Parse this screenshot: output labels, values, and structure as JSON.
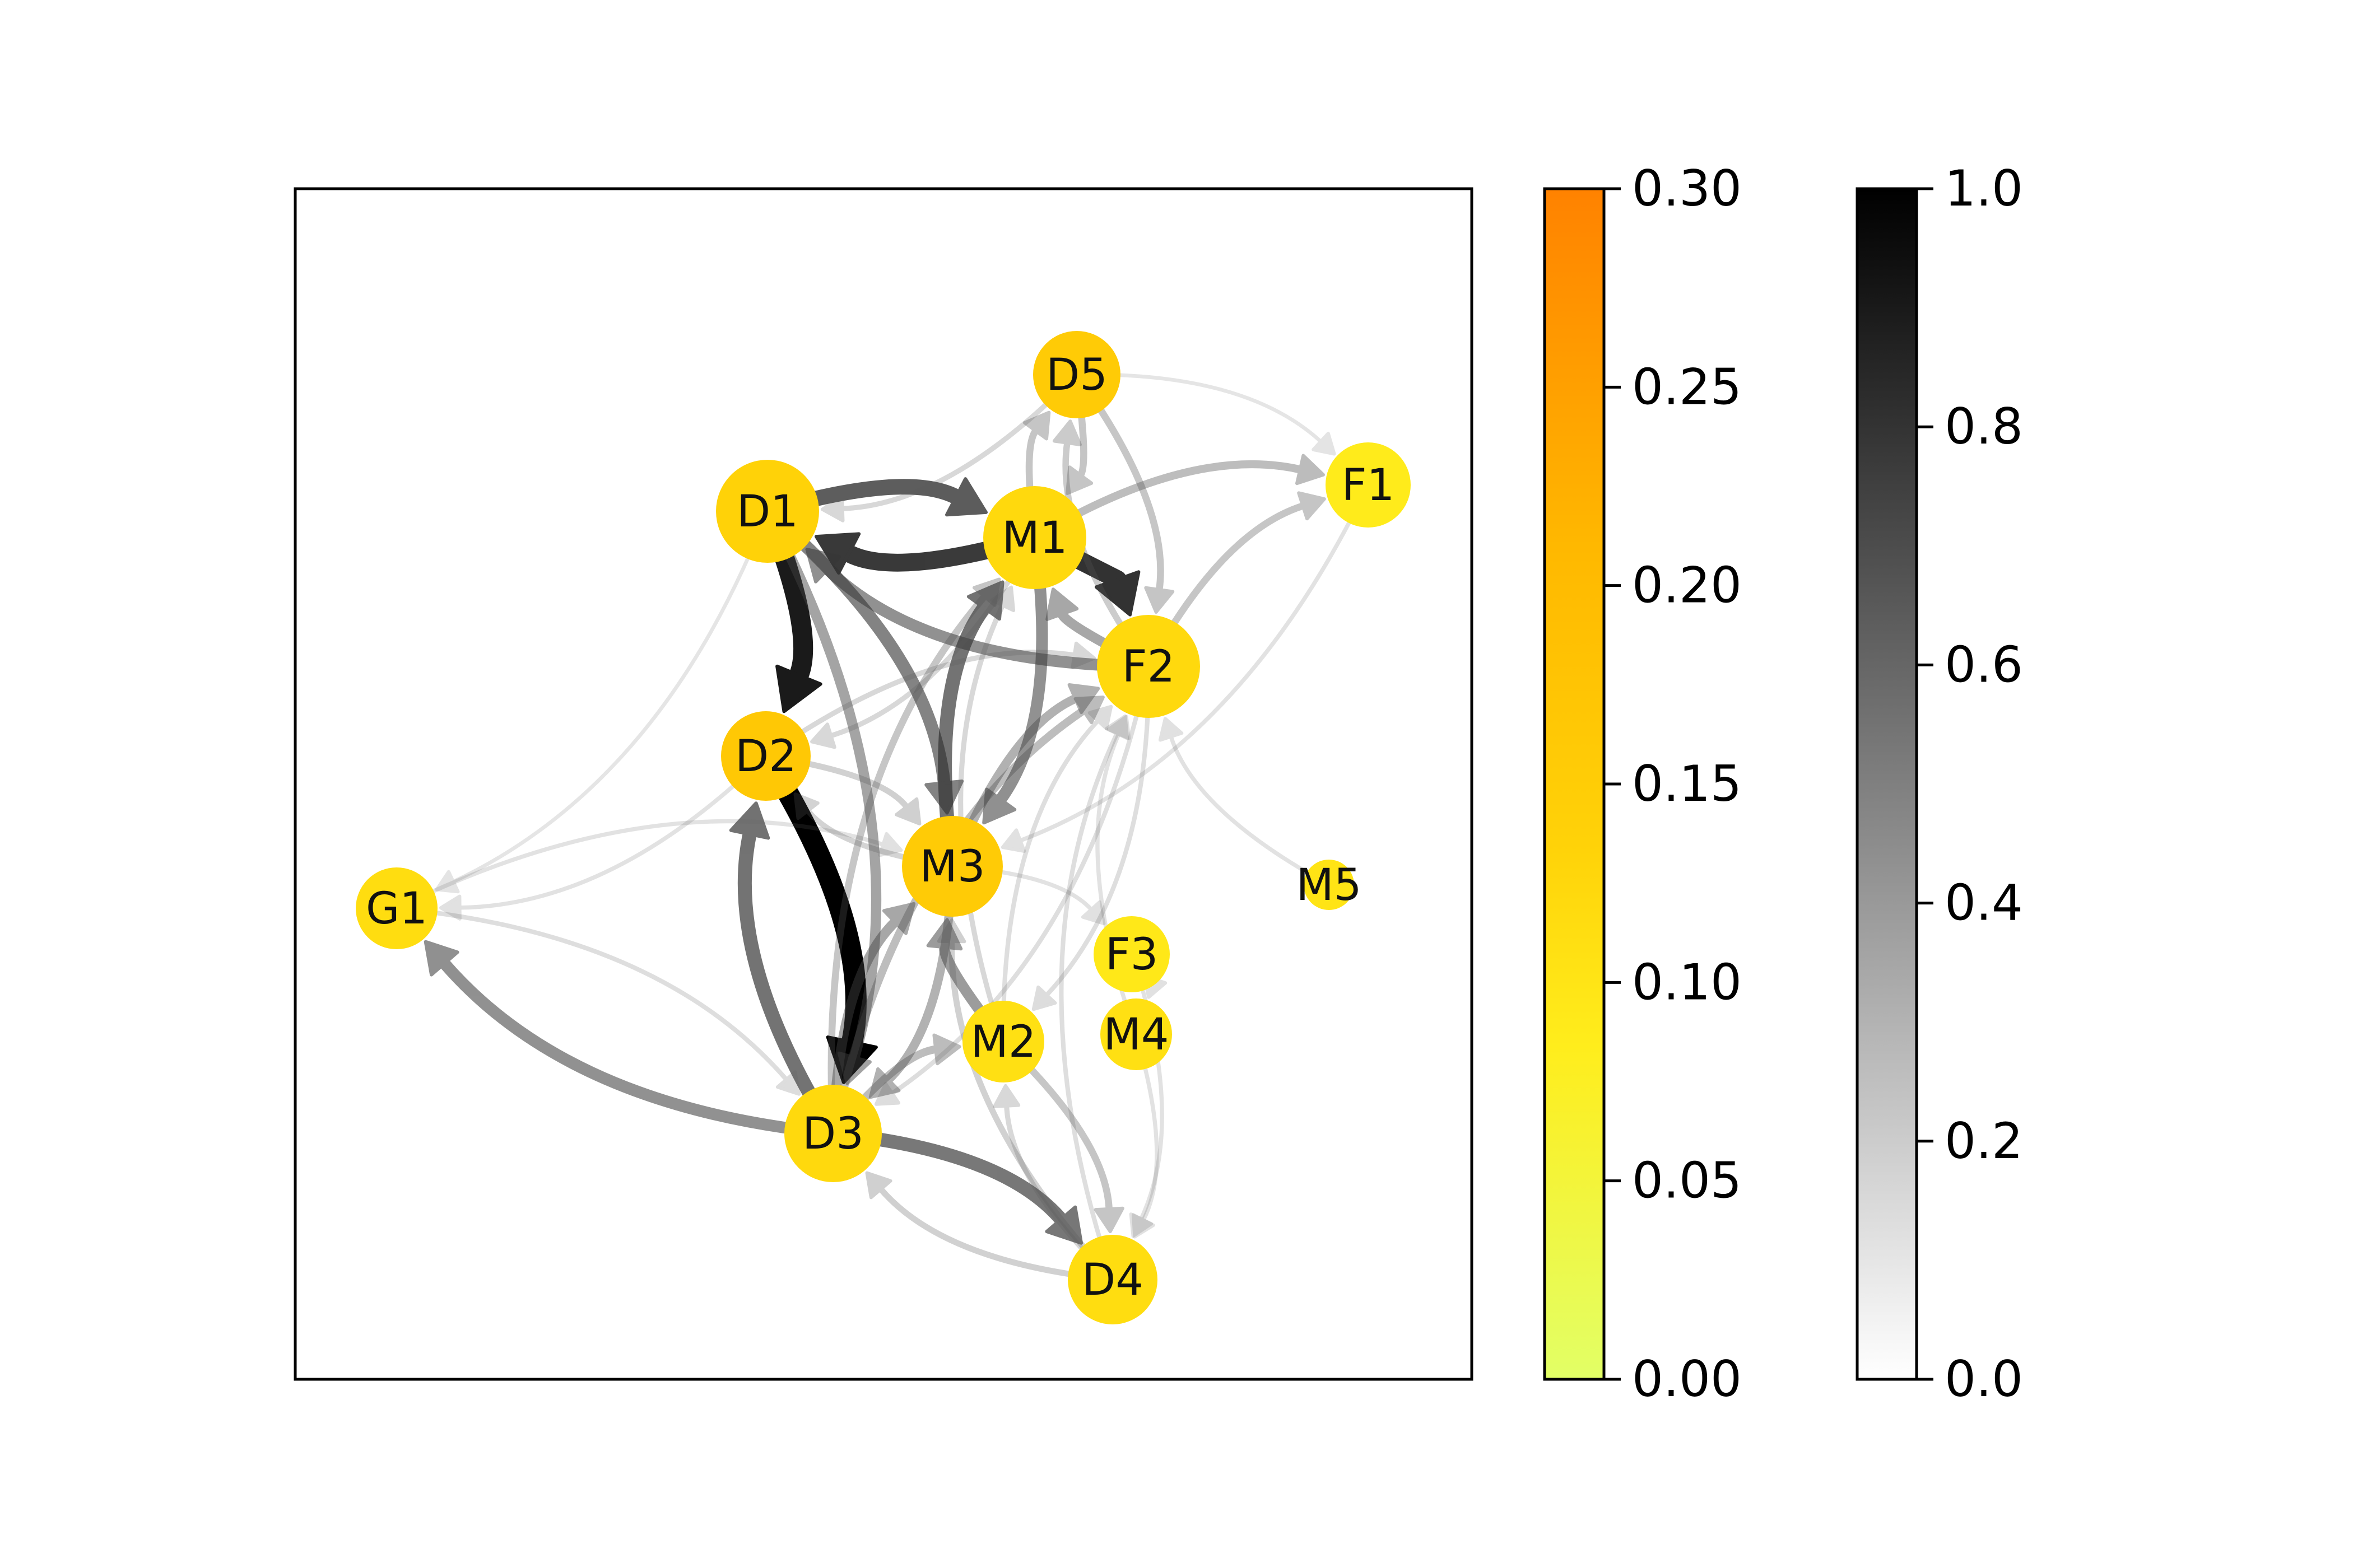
{
  "graph": {
    "nodes": [
      {
        "id": "D5",
        "label": "D5",
        "value": 0.17
      },
      {
        "id": "F1",
        "label": "F1",
        "value": 0.08
      },
      {
        "id": "D1",
        "label": "D1",
        "value": 0.15
      },
      {
        "id": "M1",
        "label": "M1",
        "value": 0.13
      },
      {
        "id": "F2",
        "label": "F2",
        "value": 0.13
      },
      {
        "id": "D2",
        "label": "D2",
        "value": 0.18
      },
      {
        "id": "M3",
        "label": "M3",
        "value": 0.17
      },
      {
        "id": "M5",
        "label": "M5",
        "value": 0.1
      },
      {
        "id": "G1",
        "label": "G1",
        "value": 0.12
      },
      {
        "id": "F3",
        "label": "F3",
        "value": 0.09
      },
      {
        "id": "M4",
        "label": "M4",
        "value": 0.11
      },
      {
        "id": "M2",
        "label": "M2",
        "value": 0.11
      },
      {
        "id": "D3",
        "label": "D3",
        "value": 0.13
      },
      {
        "id": "D4",
        "label": "D4",
        "value": 0.12
      }
    ],
    "edges": [
      {
        "source": "D2",
        "target": "D3",
        "weight": 1.0
      },
      {
        "source": "D1",
        "target": "D2",
        "weight": 0.92
      },
      {
        "source": "M1",
        "target": "D1",
        "weight": 0.82
      },
      {
        "source": "M1",
        "target": "F2",
        "weight": 0.85
      },
      {
        "source": "D1",
        "target": "M1",
        "weight": 0.7
      },
      {
        "source": "D3",
        "target": "D2",
        "weight": 0.62
      },
      {
        "source": "D3",
        "target": "D4",
        "weight": 0.6
      },
      {
        "source": "D1",
        "target": "M3",
        "weight": 0.55
      },
      {
        "source": "M3",
        "target": "M1",
        "weight": 0.62
      },
      {
        "source": "F2",
        "target": "D1",
        "weight": 0.5
      },
      {
        "source": "D3",
        "target": "G1",
        "weight": 0.5
      },
      {
        "source": "M1",
        "target": "M3",
        "weight": 0.5
      },
      {
        "source": "D1",
        "target": "D3",
        "weight": 0.42
      },
      {
        "source": "M2",
        "target": "M3",
        "weight": 0.45
      },
      {
        "source": "F2",
        "target": "M1",
        "weight": 0.4
      },
      {
        "source": "D3",
        "target": "M3",
        "weight": 0.4
      },
      {
        "source": "M3",
        "target": "F2",
        "weight": 0.35
      },
      {
        "source": "M3",
        "target": "D3",
        "weight": 0.35
      },
      {
        "source": "M1",
        "target": "F1",
        "weight": 0.3
      },
      {
        "source": "F2",
        "target": "F1",
        "weight": 0.25
      },
      {
        "source": "D3",
        "target": "M2",
        "weight": 0.3
      },
      {
        "source": "D3",
        "target": "F2",
        "weight": 0.3
      },
      {
        "source": "M1",
        "target": "D5",
        "weight": 0.25
      },
      {
        "source": "D5",
        "target": "M1",
        "weight": 0.25
      },
      {
        "source": "D5",
        "target": "F2",
        "weight": 0.25
      },
      {
        "source": "F2",
        "target": "D5",
        "weight": 0.22
      },
      {
        "source": "M2",
        "target": "D4",
        "weight": 0.25
      },
      {
        "source": "D4",
        "target": "D3",
        "weight": 0.2
      },
      {
        "source": "D4",
        "target": "M3",
        "weight": 0.2
      },
      {
        "source": "D2",
        "target": "M3",
        "weight": 0.2
      },
      {
        "source": "M3",
        "target": "D2",
        "weight": 0.18
      },
      {
        "source": "G1",
        "target": "D3",
        "weight": 0.12
      },
      {
        "source": "G1",
        "target": "M3",
        "weight": 0.1
      },
      {
        "source": "D1",
        "target": "G1",
        "weight": 0.08
      },
      {
        "source": "M5",
        "target": "F2",
        "weight": 0.1
      },
      {
        "source": "M3",
        "target": "F3",
        "weight": 0.1
      },
      {
        "source": "F3",
        "target": "M4",
        "weight": 0.1
      },
      {
        "source": "M4",
        "target": "F2",
        "weight": 0.1
      },
      {
        "source": "D4",
        "target": "F2",
        "weight": 0.12
      },
      {
        "source": "F3",
        "target": "D4",
        "weight": 0.1
      },
      {
        "source": "M4",
        "target": "D4",
        "weight": 0.1
      },
      {
        "source": "D5",
        "target": "F1",
        "weight": 0.08
      },
      {
        "source": "D5",
        "target": "D1",
        "weight": 0.15
      },
      {
        "source": "M1",
        "target": "D2",
        "weight": 0.15
      },
      {
        "source": "D2",
        "target": "F2",
        "weight": 0.15
      },
      {
        "source": "F2",
        "target": "M2",
        "weight": 0.12
      },
      {
        "source": "M2",
        "target": "F2",
        "weight": 0.12
      },
      {
        "source": "D4",
        "target": "M2",
        "weight": 0.15
      },
      {
        "source": "F2",
        "target": "D3",
        "weight": 0.12
      },
      {
        "source": "D3",
        "target": "M1",
        "weight": 0.25
      },
      {
        "source": "M2",
        "target": "M1",
        "weight": 0.15
      },
      {
        "source": "F1",
        "target": "M3",
        "weight": 0.1
      },
      {
        "source": "D2",
        "target": "G1",
        "weight": 0.1
      }
    ]
  },
  "colorbars": [
    {
      "name": "node-colorbar",
      "min": 0.0,
      "max": 0.3,
      "ticks": [
        "0.00",
        "0.05",
        "0.10",
        "0.15",
        "0.20",
        "0.25",
        "0.30"
      ],
      "colors": [
        "#e2ff66",
        "#ffed1c",
        "#ffd208",
        "#ffb800",
        "#ff8200"
      ]
    },
    {
      "name": "edge-colorbar",
      "min": 0.0,
      "max": 1.0,
      "ticks": [
        "0.0",
        "0.2",
        "0.4",
        "0.6",
        "0.8",
        "1.0"
      ],
      "colors": [
        "#ffffff",
        "#000000"
      ]
    }
  ]
}
